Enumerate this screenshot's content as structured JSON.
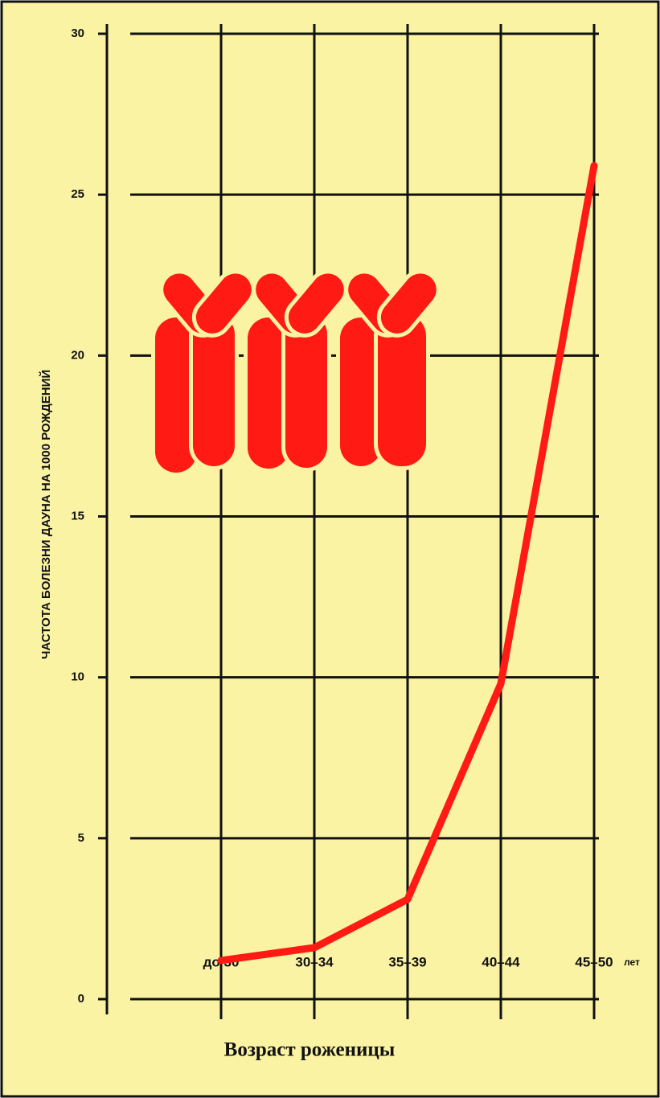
{
  "chart_data": {
    "type": "line",
    "y_label": "ЧАСТОТА БОЛЕЗНИ ДАУНА НА 1000 РОЖДЕНИЙ",
    "x_label": "Возраст роженицы",
    "x_unit": "лет",
    "categories": [
      "до 30",
      "30–34",
      "35–39",
      "40–44",
      "45–50"
    ],
    "series": [
      {
        "color": "#ff1a14",
        "values": [
          1.2,
          1.6,
          3.1,
          9.8,
          25.9
        ]
      }
    ],
    "ylim": [
      0,
      30
    ],
    "yticks": [
      0,
      5,
      10,
      15,
      20,
      25,
      30
    ],
    "grid": true
  }
}
